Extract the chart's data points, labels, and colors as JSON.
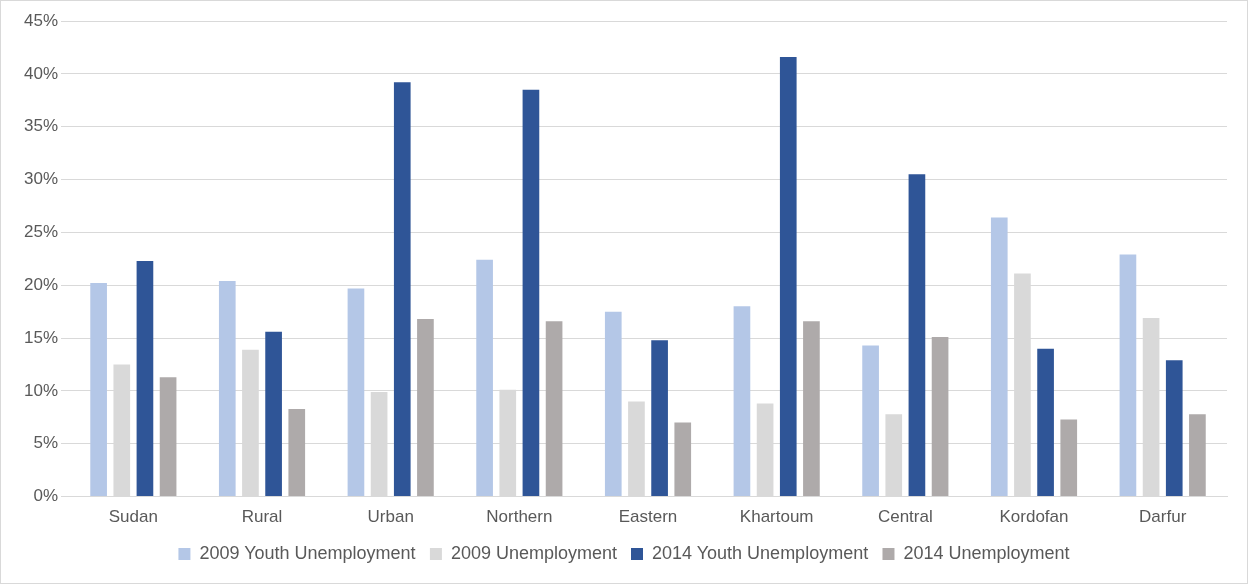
{
  "chart_data": {
    "type": "bar",
    "categories": [
      "Sudan",
      "Rural",
      "Urban",
      "Northern",
      "Eastern",
      "Khartoum",
      "Central",
      "Kordofan",
      "Darfur"
    ],
    "series": [
      {
        "name": "2009 Youth Unemployment",
        "color": "#b4c7e7",
        "values": [
          20.2,
          20.4,
          19.7,
          22.4,
          17.5,
          18.0,
          14.3,
          26.4,
          22.9
        ]
      },
      {
        "name": "2009 Unemployment",
        "color": "#d9d9d9",
        "values": [
          12.5,
          13.9,
          9.9,
          10.1,
          9.0,
          8.8,
          7.8,
          21.1,
          16.9
        ]
      },
      {
        "name": "2014 Youth Unemployment",
        "color": "#2f5597",
        "values": [
          22.3,
          15.6,
          39.2,
          38.5,
          14.8,
          41.6,
          30.5,
          14.0,
          12.9
        ]
      },
      {
        "name": "2014 Unemployment",
        "color": "#aeaaaa",
        "values": [
          11.3,
          8.3,
          16.8,
          16.6,
          7.0,
          16.6,
          15.1,
          7.3,
          7.8
        ]
      }
    ],
    "ylim": [
      0,
      45
    ],
    "yticks": [
      {
        "value": 0,
        "label": "0%"
      },
      {
        "value": 5,
        "label": "5%"
      },
      {
        "value": 10,
        "label": "10%"
      },
      {
        "value": 15,
        "label": "15%"
      },
      {
        "value": 20,
        "label": "20%"
      },
      {
        "value": 25,
        "label": "25%"
      },
      {
        "value": 30,
        "label": "30%"
      },
      {
        "value": 35,
        "label": "35%"
      },
      {
        "value": 40,
        "label": "40%"
      },
      {
        "value": 45,
        "label": "45%"
      }
    ],
    "grid": "y",
    "legend": "bottom"
  }
}
